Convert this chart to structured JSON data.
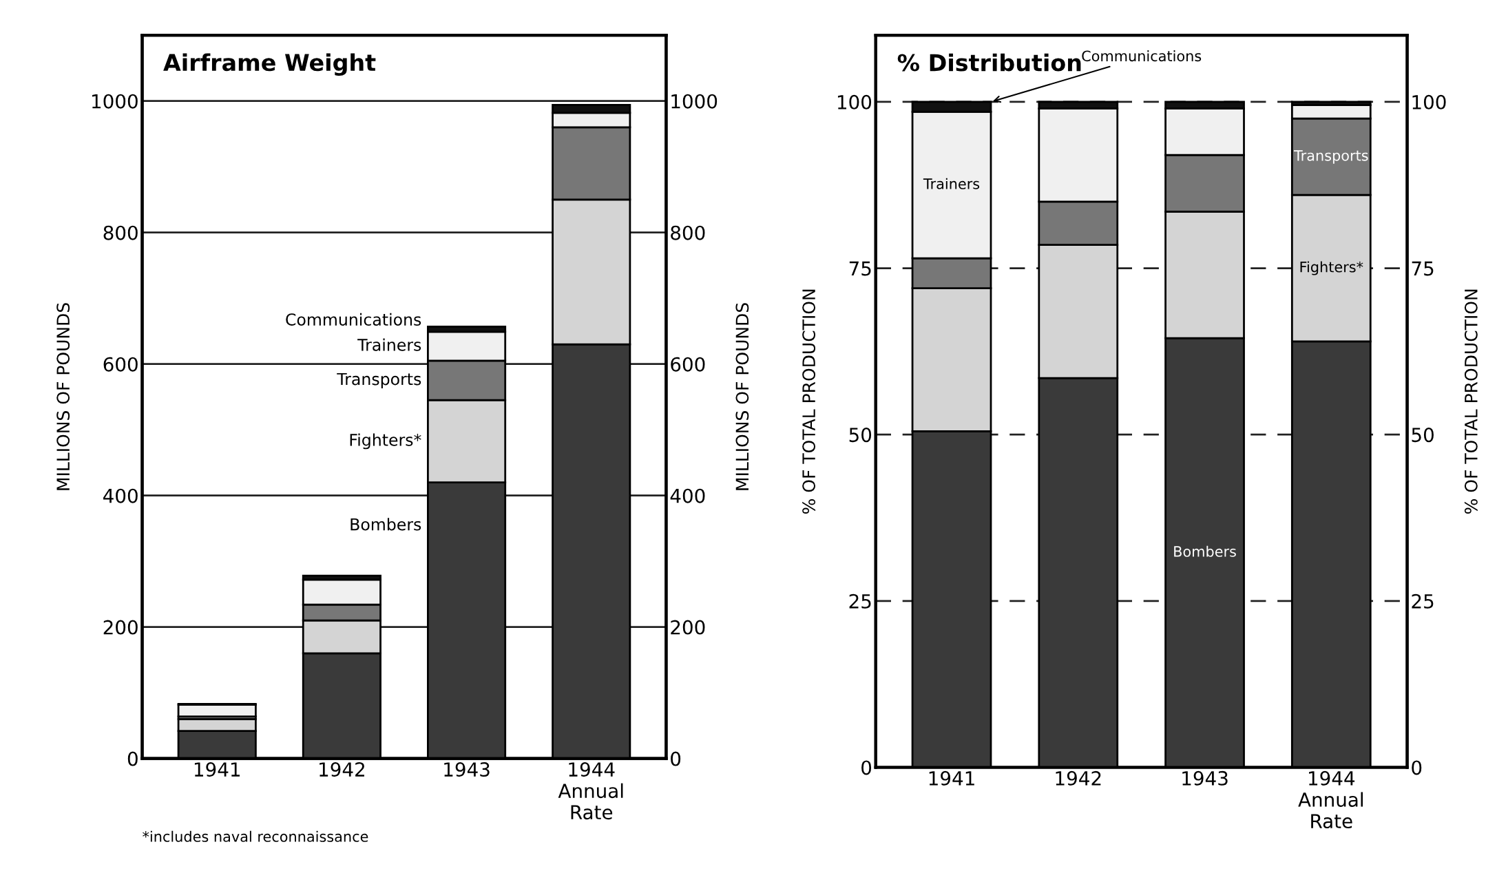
{
  "chart_data": [
    {
      "type": "bar",
      "title": "Airframe Weight",
      "stacked": true,
      "categories": [
        "1941",
        "1942",
        "1943",
        "1944\nAnnual\nRate"
      ],
      "series": [
        {
          "name": "Bombers",
          "color": "#3a3a3a",
          "values": [
            42,
            160,
            420,
            630
          ]
        },
        {
          "name": "Fighters*",
          "color": "#d4d4d4",
          "values": [
            18,
            50,
            125,
            220
          ]
        },
        {
          "name": "Transports",
          "color": "#777777",
          "values": [
            4,
            24,
            60,
            110
          ]
        },
        {
          "name": "Trainers",
          "color": "#f0f0f0",
          "values": [
            18,
            38,
            44,
            22
          ]
        },
        {
          "name": "Communications",
          "color": "#111111",
          "values": [
            1,
            6,
            8,
            12
          ]
        }
      ],
      "ylabel": "MILLIONS OF POUNDS",
      "y2label": "MILLIONS OF POUNDS",
      "ylim": [
        0,
        1100
      ],
      "yticks": [
        0,
        200,
        400,
        600,
        800,
        1000
      ],
      "y2lim": [
        0,
        1100
      ],
      "y2ticks": [
        0,
        200,
        400,
        600,
        800,
        1000
      ],
      "grid": "y",
      "legend": false,
      "annotations": [
        "*includes naval reconnaissance"
      ]
    },
    {
      "type": "bar",
      "title": "% Distribution",
      "stacked": true,
      "categories": [
        "1941",
        "1942",
        "1943",
        "1944\nAnnual\nRate"
      ],
      "series": [
        {
          "name": "Bombers",
          "color": "#3a3a3a",
          "values": [
            50.5,
            58.5,
            64.5,
            64
          ]
        },
        {
          "name": "Fighters*",
          "color": "#d4d4d4",
          "values": [
            21.5,
            20,
            19,
            22
          ]
        },
        {
          "name": "Transports",
          "color": "#777777",
          "values": [
            4.5,
            6.5,
            8.5,
            11.5
          ]
        },
        {
          "name": "Trainers",
          "color": "#f0f0f0",
          "values": [
            22,
            14,
            7,
            2
          ]
        },
        {
          "name": "Communications",
          "color": "#111111",
          "values": [
            1.5,
            1,
            1,
            0.5
          ]
        }
      ],
      "ylabel": "% OF TOTAL PRODUCTION",
      "y2label": "% OF TOTAL PRODUCTION",
      "ylim": [
        0,
        110
      ],
      "yticks": [
        0,
        25,
        50,
        75,
        100
      ],
      "y2lim": [
        0,
        110
      ],
      "y2ticks": [
        0,
        25,
        50,
        75,
        100
      ],
      "grid": "y",
      "legend": false
    }
  ]
}
